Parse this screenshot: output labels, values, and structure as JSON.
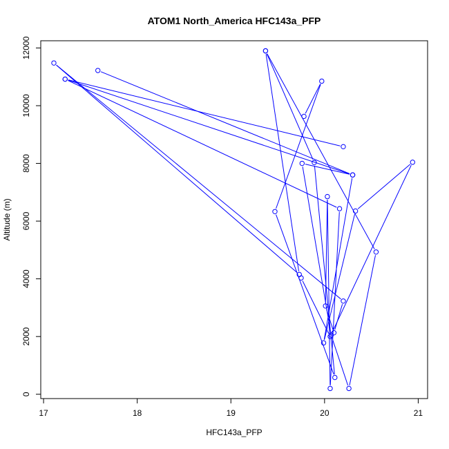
{
  "chart_data": {
    "type": "scatter",
    "title": "ATOM1 North_America HFC143a_PFP",
    "xlabel": "HFC143a_PFP",
    "ylabel": "Altitude (m)",
    "xlim": [
      16.97,
      21.1
    ],
    "ylim": [
      -150,
      12250
    ],
    "xticks": [
      17,
      18,
      19,
      20,
      21
    ],
    "yticks": [
      0,
      2000,
      4000,
      6000,
      8000,
      10000,
      12000
    ],
    "grid": false,
    "legend": "none",
    "color": "#0000ff",
    "series": [
      {
        "x": [
          19.37,
          19.73,
          17.11,
          20.2,
          20.1,
          20.01,
          20.03,
          20.06,
          20.16,
          17.23,
          20.3,
          19.76,
          20.07,
          20.26,
          20.55,
          19.37,
          19.89,
          20.11,
          19.47,
          19.97,
          19.78
        ],
        "y": [
          11900,
          4150,
          11480,
          3230,
          2130,
          3060,
          6850,
          200,
          6430,
          10920,
          7600,
          8000,
          2050,
          200,
          4930,
          11900,
          8030,
          580,
          6330,
          10850,
          9630
        ]
      },
      {
        "x": [
          17.58,
          20.3,
          19.99,
          20.33,
          20.94,
          20.06,
          19.75
        ],
        "y": [
          11220,
          7600,
          1780,
          6350,
          8040,
          2000,
          4030
        ]
      },
      {
        "x": [
          17.23,
          20.2
        ],
        "y": [
          10920,
          8580
        ]
      }
    ]
  }
}
